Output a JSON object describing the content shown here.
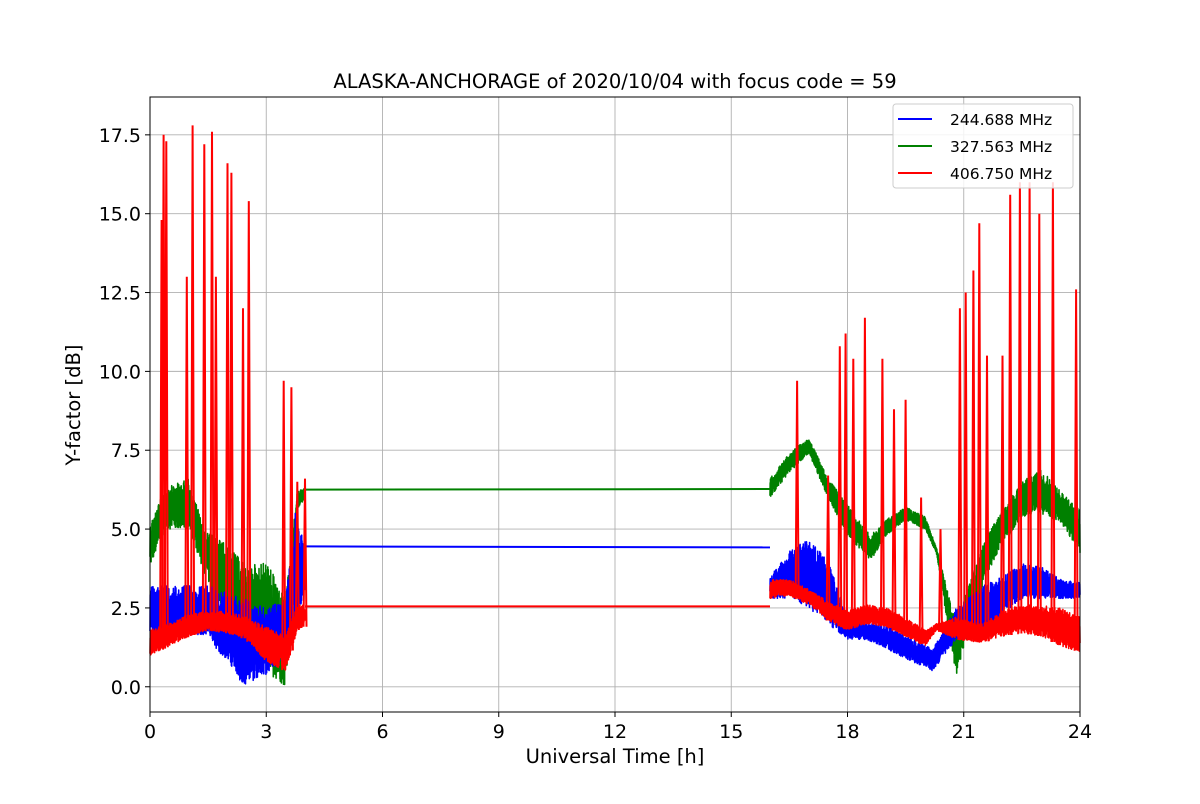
{
  "chart_data": {
    "type": "line",
    "title": "ALASKA-ANCHORAGE of 2020/10/04 with focus code = 59",
    "xlabel": "Universal Time [h]",
    "ylabel": "Y-factor [dB]",
    "xlim": [
      0,
      24
    ],
    "ylim": [
      -0.8,
      18.7
    ],
    "xticks": [
      0,
      3,
      6,
      9,
      12,
      15,
      18,
      21,
      24
    ],
    "xtick_labels": [
      "0",
      "3",
      "6",
      "9",
      "12",
      "15",
      "18",
      "21",
      "24"
    ],
    "yticks": [
      0,
      2.5,
      5,
      7.5,
      10,
      12.5,
      15,
      17.5
    ],
    "ytick_labels": [
      "0.0",
      "2.5",
      "5.0",
      "7.5",
      "10.0",
      "12.5",
      "15.0",
      "17.5"
    ],
    "grid": true,
    "legend_position": "top-right",
    "series": [
      {
        "name": "244.688 MHz",
        "color": "#0000ff",
        "envelope": [
          {
            "x": 0.0,
            "lo": 1.5,
            "hi": 3.2
          },
          {
            "x": 0.5,
            "lo": 1.6,
            "hi": 3.2
          },
          {
            "x": 1.0,
            "lo": 1.7,
            "hi": 3.2
          },
          {
            "x": 1.5,
            "lo": 1.5,
            "hi": 3.2
          },
          {
            "x": 2.0,
            "lo": 0.8,
            "hi": 3.0
          },
          {
            "x": 2.4,
            "lo": 0.0,
            "hi": 2.8
          },
          {
            "x": 3.0,
            "lo": 0.4,
            "hi": 2.5
          },
          {
            "x": 3.5,
            "lo": 0.8,
            "hi": 2.8
          },
          {
            "x": 3.75,
            "lo": 2.0,
            "hi": 5.5
          },
          {
            "x": 4.0,
            "lo": 3.0,
            "hi": 4.5
          }
        ],
        "points": [
          [
            4.0,
            4.45
          ],
          [
            16.0,
            4.42
          ]
        ],
        "envelope2": [
          {
            "x": 16.0,
            "lo": 2.8,
            "hi": 3.5
          },
          {
            "x": 16.5,
            "lo": 2.8,
            "hi": 4.3
          },
          {
            "x": 17.0,
            "lo": 2.5,
            "hi": 4.7
          },
          {
            "x": 17.5,
            "lo": 2.0,
            "hi": 4.0
          },
          {
            "x": 18.0,
            "lo": 1.5,
            "hi": 2.2
          },
          {
            "x": 18.5,
            "lo": 1.5,
            "hi": 2.0
          },
          {
            "x": 19.0,
            "lo": 1.2,
            "hi": 2.0
          },
          {
            "x": 19.5,
            "lo": 0.9,
            "hi": 1.6
          },
          {
            "x": 20.2,
            "lo": 0.5,
            "hi": 1.2
          },
          {
            "x": 20.8,
            "lo": 1.5,
            "hi": 2.5
          },
          {
            "x": 21.5,
            "lo": 1.6,
            "hi": 3.2
          },
          {
            "x": 22.0,
            "lo": 2.3,
            "hi": 3.5
          },
          {
            "x": 22.5,
            "lo": 2.8,
            "hi": 3.9
          },
          {
            "x": 23.0,
            "lo": 2.8,
            "hi": 3.8
          },
          {
            "x": 23.5,
            "lo": 2.8,
            "hi": 3.4
          },
          {
            "x": 24.0,
            "lo": 2.8,
            "hi": 3.3
          }
        ]
      },
      {
        "name": "327.563 MHz",
        "color": "#008000",
        "envelope": [
          {
            "x": 0.0,
            "lo": 3.8,
            "hi": 5.2
          },
          {
            "x": 0.4,
            "lo": 5.0,
            "hi": 6.3
          },
          {
            "x": 1.0,
            "lo": 5.0,
            "hi": 6.6
          },
          {
            "x": 1.4,
            "lo": 3.6,
            "hi": 5.0
          },
          {
            "x": 2.0,
            "lo": 2.2,
            "hi": 4.5
          },
          {
            "x": 2.5,
            "lo": 1.3,
            "hi": 3.8
          },
          {
            "x": 3.0,
            "lo": 0.5,
            "hi": 4.0
          },
          {
            "x": 3.5,
            "lo": 0.0,
            "hi": 2.8
          },
          {
            "x": 3.8,
            "lo": 5.6,
            "hi": 6.2
          },
          {
            "x": 4.0,
            "lo": 6.0,
            "hi": 6.3
          }
        ],
        "points": [
          [
            4.0,
            6.25
          ],
          [
            16.0,
            6.27
          ]
        ],
        "envelope2": [
          {
            "x": 16.0,
            "lo": 6.0,
            "hi": 6.6
          },
          {
            "x": 16.5,
            "lo": 6.8,
            "hi": 7.4
          },
          {
            "x": 17.0,
            "lo": 7.4,
            "hi": 7.9
          },
          {
            "x": 17.5,
            "lo": 6.0,
            "hi": 6.6
          },
          {
            "x": 18.0,
            "lo": 4.8,
            "hi": 5.8
          },
          {
            "x": 18.6,
            "lo": 4.0,
            "hi": 4.8
          },
          {
            "x": 19.0,
            "lo": 4.8,
            "hi": 5.3
          },
          {
            "x": 19.5,
            "lo": 5.3,
            "hi": 5.7
          },
          {
            "x": 20.0,
            "lo": 5.0,
            "hi": 5.4
          },
          {
            "x": 20.3,
            "lo": 4.2,
            "hi": 4.4
          },
          {
            "x": 20.8,
            "lo": 0.3,
            "hi": 2.0
          },
          {
            "x": 21.2,
            "lo": 2.0,
            "hi": 3.5
          },
          {
            "x": 21.6,
            "lo": 3.6,
            "hi": 4.8
          },
          {
            "x": 22.0,
            "lo": 4.5,
            "hi": 5.6
          },
          {
            "x": 22.5,
            "lo": 5.4,
            "hi": 6.5
          },
          {
            "x": 23.0,
            "lo": 5.5,
            "hi": 6.9
          },
          {
            "x": 23.5,
            "lo": 5.2,
            "hi": 6.2
          },
          {
            "x": 24.0,
            "lo": 4.2,
            "hi": 5.6
          }
        ]
      },
      {
        "name": "406.750 MHz",
        "color": "#ff0000",
        "envelope": [
          {
            "x": 0.0,
            "lo": 1.0,
            "hi": 1.8
          },
          {
            "x": 0.5,
            "lo": 1.3,
            "hi": 2.0
          },
          {
            "x": 1.0,
            "lo": 1.6,
            "hi": 2.3
          },
          {
            "x": 1.5,
            "lo": 1.8,
            "hi": 2.4
          },
          {
            "x": 2.0,
            "lo": 1.7,
            "hi": 2.4
          },
          {
            "x": 2.5,
            "lo": 1.5,
            "hi": 2.2
          },
          {
            "x": 3.0,
            "lo": 0.8,
            "hi": 1.9
          },
          {
            "x": 3.5,
            "lo": 0.5,
            "hi": 1.6
          },
          {
            "x": 3.8,
            "lo": 1.8,
            "hi": 2.6
          },
          {
            "x": 4.0,
            "lo": 1.9,
            "hi": 2.6
          }
        ],
        "spikes": [
          [
            0.3,
            14.8
          ],
          [
            0.35,
            17.5
          ],
          [
            0.42,
            17.3
          ],
          [
            0.95,
            13.0
          ],
          [
            1.1,
            17.8
          ],
          [
            1.4,
            17.2
          ],
          [
            1.6,
            17.6
          ],
          [
            1.7,
            13.0
          ],
          [
            2.0,
            16.6
          ],
          [
            2.1,
            16.3
          ],
          [
            2.4,
            12.0
          ],
          [
            2.55,
            15.4
          ],
          [
            3.45,
            9.7
          ],
          [
            3.65,
            9.5
          ],
          [
            3.8,
            6.5
          ],
          [
            4.0,
            6.6
          ],
          [
            16.7,
            9.7
          ],
          [
            17.5,
            6.7
          ],
          [
            17.8,
            10.8
          ],
          [
            17.95,
            11.2
          ],
          [
            18.15,
            10.4
          ],
          [
            18.45,
            11.7
          ],
          [
            18.9,
            10.4
          ],
          [
            19.2,
            8.8
          ],
          [
            19.5,
            9.1
          ],
          [
            19.9,
            6.0
          ],
          [
            20.4,
            5.0
          ],
          [
            20.9,
            12.0
          ],
          [
            21.05,
            12.5
          ],
          [
            21.25,
            13.2
          ],
          [
            21.4,
            14.7
          ],
          [
            21.6,
            10.5
          ],
          [
            22.0,
            10.5
          ],
          [
            22.2,
            15.6
          ],
          [
            22.45,
            16.0
          ],
          [
            22.7,
            16.0
          ],
          [
            22.95,
            15.0
          ],
          [
            23.3,
            16.0
          ],
          [
            23.9,
            12.6
          ]
        ],
        "points": [
          [
            4.0,
            2.55
          ],
          [
            16.0,
            2.55
          ]
        ],
        "envelope2": [
          {
            "x": 16.0,
            "lo": 2.8,
            "hi": 3.4
          },
          {
            "x": 16.5,
            "lo": 2.9,
            "hi": 3.4
          },
          {
            "x": 17.0,
            "lo": 2.6,
            "hi": 3.1
          },
          {
            "x": 17.5,
            "lo": 2.1,
            "hi": 2.7
          },
          {
            "x": 18.0,
            "lo": 1.8,
            "hi": 2.4
          },
          {
            "x": 18.5,
            "lo": 2.0,
            "hi": 2.6
          },
          {
            "x": 19.0,
            "lo": 1.9,
            "hi": 2.5
          },
          {
            "x": 19.5,
            "lo": 1.6,
            "hi": 2.2
          },
          {
            "x": 20.0,
            "lo": 1.3,
            "hi": 1.8
          },
          {
            "x": 20.3,
            "lo": 1.8,
            "hi": 2.0
          },
          {
            "x": 20.8,
            "lo": 1.5,
            "hi": 2.2
          },
          {
            "x": 21.5,
            "lo": 1.4,
            "hi": 2.0
          },
          {
            "x": 22.0,
            "lo": 1.6,
            "hi": 2.4
          },
          {
            "x": 22.5,
            "lo": 1.7,
            "hi": 2.6
          },
          {
            "x": 23.0,
            "lo": 1.6,
            "hi": 2.6
          },
          {
            "x": 23.5,
            "lo": 1.3,
            "hi": 2.5
          },
          {
            "x": 24.0,
            "lo": 1.1,
            "hi": 2.2
          }
        ]
      }
    ]
  }
}
